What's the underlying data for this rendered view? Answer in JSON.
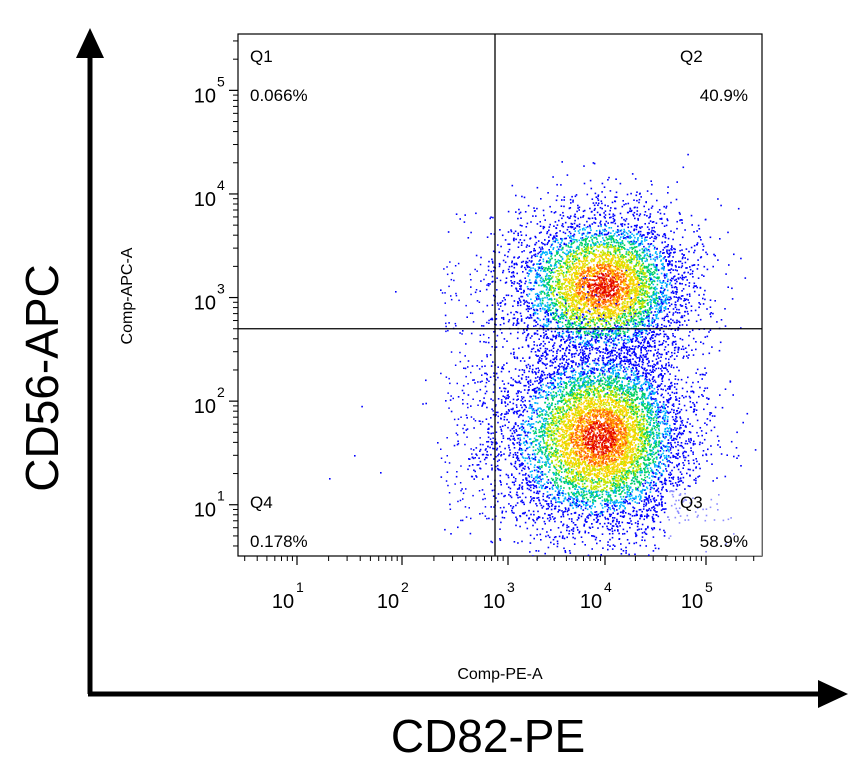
{
  "chart_data": {
    "type": "scatter",
    "subtype": "flow-cytometry-density-plot",
    "x_axis": {
      "label": "Comp-PE-A",
      "scale": "log",
      "range": [
        300,
        200000
      ],
      "major_ticks": [
        {
          "value": 10,
          "base": "10",
          "exp": "1"
        },
        {
          "value": 100,
          "base": "10",
          "exp": "2"
        },
        {
          "value": 1000,
          "base": "10",
          "exp": "3"
        },
        {
          "value": 10000,
          "base": "10",
          "exp": "4"
        },
        {
          "value": 100000,
          "base": "10",
          "exp": "5"
        }
      ]
    },
    "y_axis": {
      "label": "Comp-APC-A",
      "scale": "log",
      "range": [
        3.2,
        350000
      ],
      "major_ticks": [
        {
          "value": 10,
          "base": "10",
          "exp": "1"
        },
        {
          "value": 100,
          "base": "10",
          "exp": "2"
        },
        {
          "value": 1000,
          "base": "10",
          "exp": "3"
        },
        {
          "value": 10000,
          "base": "10",
          "exp": "4"
        },
        {
          "value": 100000,
          "base": "10",
          "exp": "5"
        }
      ]
    },
    "outer_labels": {
      "x": "CD82-PE",
      "y": "CD56-APC"
    },
    "quadrant_gate": {
      "x": 900,
      "y": 500
    },
    "quadrants": [
      {
        "name": "Q1",
        "percent": "0.066%",
        "position": "top-left"
      },
      {
        "name": "Q2",
        "percent": "40.9%",
        "position": "top-right"
      },
      {
        "name": "Q3",
        "percent": "58.9%",
        "position": "bottom-right"
      },
      {
        "name": "Q4",
        "percent": "0.178%",
        "position": "bottom-left"
      }
    ],
    "populations": [
      {
        "center_x": 11000,
        "center_y": 1300,
        "share": 0.41
      },
      {
        "center_x": 9500,
        "center_y": 45,
        "share": 0.59
      }
    ],
    "density_colors": [
      "#0000ff",
      "#00b4ff",
      "#00d060",
      "#c8e600",
      "#ffd000",
      "#ff6000",
      "#e00000"
    ],
    "grid": false
  }
}
